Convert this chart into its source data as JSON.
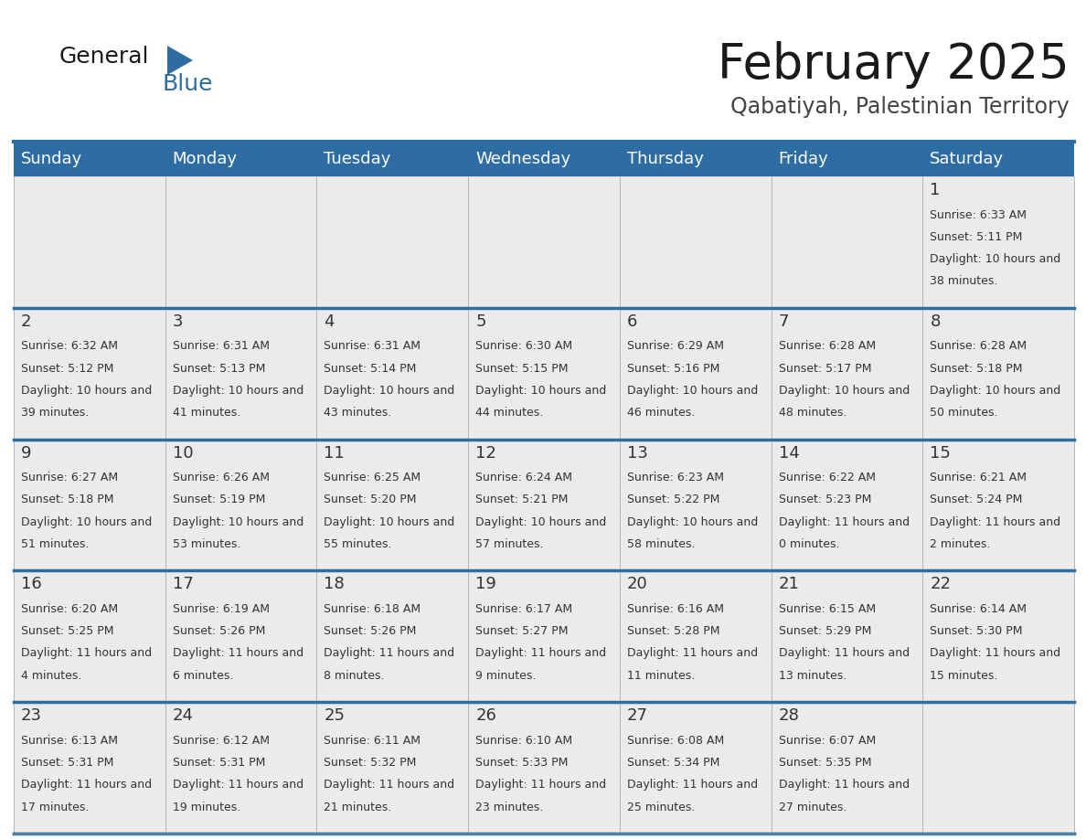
{
  "title": "February 2025",
  "subtitle": "Qabatiyah, Palestinian Territory",
  "header_bg": "#2E6DA4",
  "header_text_color": "#FFFFFF",
  "cell_bg": "#E8E8E8",
  "cell_body_bg": "#FFFFFF",
  "border_color": "#2E6DA4",
  "row_border_color": "#2E6DA4",
  "text_color": "#333333",
  "day_num_color": "#333333",
  "day_headers": [
    "Sunday",
    "Monday",
    "Tuesday",
    "Wednesday",
    "Thursday",
    "Friday",
    "Saturday"
  ],
  "days_data": [
    {
      "day": 1,
      "col": 6,
      "row": 0,
      "sunrise": "6:33 AM",
      "sunset": "5:11 PM",
      "daylight": "10 hours and 38 minutes."
    },
    {
      "day": 2,
      "col": 0,
      "row": 1,
      "sunrise": "6:32 AM",
      "sunset": "5:12 PM",
      "daylight": "10 hours and 39 minutes."
    },
    {
      "day": 3,
      "col": 1,
      "row": 1,
      "sunrise": "6:31 AM",
      "sunset": "5:13 PM",
      "daylight": "10 hours and 41 minutes."
    },
    {
      "day": 4,
      "col": 2,
      "row": 1,
      "sunrise": "6:31 AM",
      "sunset": "5:14 PM",
      "daylight": "10 hours and 43 minutes."
    },
    {
      "day": 5,
      "col": 3,
      "row": 1,
      "sunrise": "6:30 AM",
      "sunset": "5:15 PM",
      "daylight": "10 hours and 44 minutes."
    },
    {
      "day": 6,
      "col": 4,
      "row": 1,
      "sunrise": "6:29 AM",
      "sunset": "5:16 PM",
      "daylight": "10 hours and 46 minutes."
    },
    {
      "day": 7,
      "col": 5,
      "row": 1,
      "sunrise": "6:28 AM",
      "sunset": "5:17 PM",
      "daylight": "10 hours and 48 minutes."
    },
    {
      "day": 8,
      "col": 6,
      "row": 1,
      "sunrise": "6:28 AM",
      "sunset": "5:18 PM",
      "daylight": "10 hours and 50 minutes."
    },
    {
      "day": 9,
      "col": 0,
      "row": 2,
      "sunrise": "6:27 AM",
      "sunset": "5:18 PM",
      "daylight": "10 hours and 51 minutes."
    },
    {
      "day": 10,
      "col": 1,
      "row": 2,
      "sunrise": "6:26 AM",
      "sunset": "5:19 PM",
      "daylight": "10 hours and 53 minutes."
    },
    {
      "day": 11,
      "col": 2,
      "row": 2,
      "sunrise": "6:25 AM",
      "sunset": "5:20 PM",
      "daylight": "10 hours and 55 minutes."
    },
    {
      "day": 12,
      "col": 3,
      "row": 2,
      "sunrise": "6:24 AM",
      "sunset": "5:21 PM",
      "daylight": "10 hours and 57 minutes."
    },
    {
      "day": 13,
      "col": 4,
      "row": 2,
      "sunrise": "6:23 AM",
      "sunset": "5:22 PM",
      "daylight": "10 hours and 58 minutes."
    },
    {
      "day": 14,
      "col": 5,
      "row": 2,
      "sunrise": "6:22 AM",
      "sunset": "5:23 PM",
      "daylight": "11 hours and 0 minutes."
    },
    {
      "day": 15,
      "col": 6,
      "row": 2,
      "sunrise": "6:21 AM",
      "sunset": "5:24 PM",
      "daylight": "11 hours and 2 minutes."
    },
    {
      "day": 16,
      "col": 0,
      "row": 3,
      "sunrise": "6:20 AM",
      "sunset": "5:25 PM",
      "daylight": "11 hours and 4 minutes."
    },
    {
      "day": 17,
      "col": 1,
      "row": 3,
      "sunrise": "6:19 AM",
      "sunset": "5:26 PM",
      "daylight": "11 hours and 6 minutes."
    },
    {
      "day": 18,
      "col": 2,
      "row": 3,
      "sunrise": "6:18 AM",
      "sunset": "5:26 PM",
      "daylight": "11 hours and 8 minutes."
    },
    {
      "day": 19,
      "col": 3,
      "row": 3,
      "sunrise": "6:17 AM",
      "sunset": "5:27 PM",
      "daylight": "11 hours and 9 minutes."
    },
    {
      "day": 20,
      "col": 4,
      "row": 3,
      "sunrise": "6:16 AM",
      "sunset": "5:28 PM",
      "daylight": "11 hours and 11 minutes."
    },
    {
      "day": 21,
      "col": 5,
      "row": 3,
      "sunrise": "6:15 AM",
      "sunset": "5:29 PM",
      "daylight": "11 hours and 13 minutes."
    },
    {
      "day": 22,
      "col": 6,
      "row": 3,
      "sunrise": "6:14 AM",
      "sunset": "5:30 PM",
      "daylight": "11 hours and 15 minutes."
    },
    {
      "day": 23,
      "col": 0,
      "row": 4,
      "sunrise": "6:13 AM",
      "sunset": "5:31 PM",
      "daylight": "11 hours and 17 minutes."
    },
    {
      "day": 24,
      "col": 1,
      "row": 4,
      "sunrise": "6:12 AM",
      "sunset": "5:31 PM",
      "daylight": "11 hours and 19 minutes."
    },
    {
      "day": 25,
      "col": 2,
      "row": 4,
      "sunrise": "6:11 AM",
      "sunset": "5:32 PM",
      "daylight": "11 hours and 21 minutes."
    },
    {
      "day": 26,
      "col": 3,
      "row": 4,
      "sunrise": "6:10 AM",
      "sunset": "5:33 PM",
      "daylight": "11 hours and 23 minutes."
    },
    {
      "day": 27,
      "col": 4,
      "row": 4,
      "sunrise": "6:08 AM",
      "sunset": "5:34 PM",
      "daylight": "11 hours and 25 minutes."
    },
    {
      "day": 28,
      "col": 5,
      "row": 4,
      "sunrise": "6:07 AM",
      "sunset": "5:35 PM",
      "daylight": "11 hours and 27 minutes."
    }
  ],
  "num_rows": 5,
  "num_cols": 7
}
